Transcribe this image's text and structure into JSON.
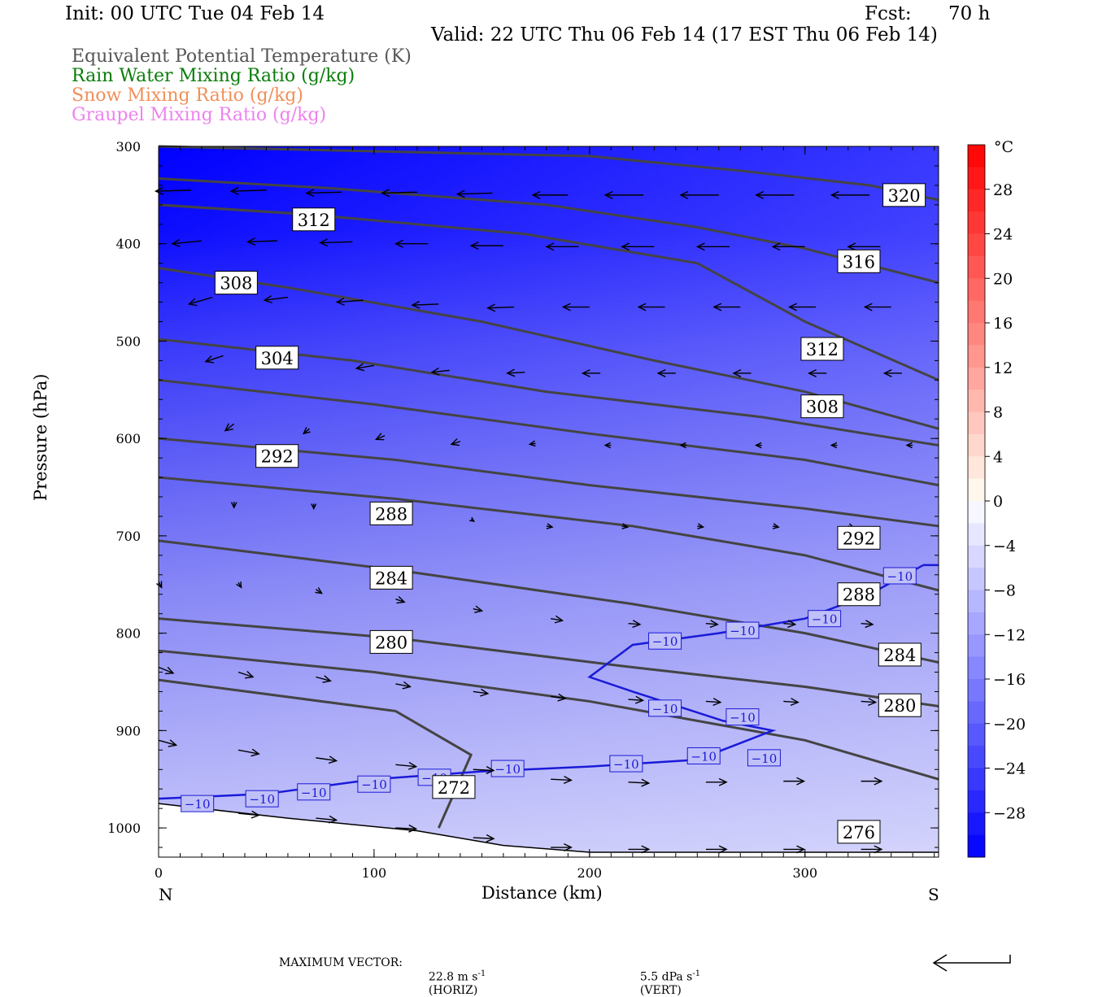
{
  "header": {
    "init": "Init: 00 UTC Tue 04 Feb 14",
    "fcst_label": "Fcst:",
    "fcst_value": "70 h",
    "valid": "Valid: 22 UTC Thu 06 Feb 14 (17 EST Thu 06 Feb 14)"
  },
  "legend": [
    {
      "text": "Equivalent Potential Temperature (K)",
      "color": "#555555"
    },
    {
      "text": "Rain Water Mixing Ratio (g/kg)",
      "color": "#0a7d0a"
    },
    {
      "text": "Snow Mixing Ratio (g/kg)",
      "color": "#f0905a"
    },
    {
      "text": "Graupel Mixing Ratio (g/kg)",
      "color": "#ee82ee"
    }
  ],
  "footer": {
    "max_vector_label": "MAXIMUM VECTOR:",
    "horiz": "22.8 m s",
    "horiz_unit": "(HORIZ)",
    "vert": "5.5 dPa s",
    "vert_unit": "(VERT)",
    "exponent": "-1"
  },
  "chart_data": {
    "type": "cross-section",
    "xlabel": "Distance (km)",
    "ylabel": "Pressure (hPa)",
    "x_ticks": [
      0,
      100,
      200,
      300
    ],
    "y_ticks": [
      300,
      400,
      500,
      600,
      700,
      800,
      900,
      1000
    ],
    "xlim": [
      0,
      362
    ],
    "ylim": [
      300,
      1030
    ],
    "y_reversed": true,
    "end_labels": {
      "left": "N",
      "right": "S"
    },
    "grid": false,
    "colorbar": {
      "unit": "°C",
      "tick_labels": [
        "28",
        "24",
        "20",
        "16",
        "12",
        "8",
        "4",
        "0",
        "−4",
        "−8",
        "−12",
        "−16",
        "−20",
        "−24",
        "−28"
      ],
      "tick_values": [
        28,
        24,
        20,
        16,
        12,
        8,
        4,
        0,
        -4,
        -8,
        -12,
        -16,
        -20,
        -24,
        -28
      ],
      "range": [
        -32,
        32
      ],
      "placement": "right"
    },
    "theta_e_contours": [
      {
        "label": "320",
        "points": [
          [
            0,
            300
          ],
          [
            100,
            305
          ],
          [
            200,
            310
          ],
          [
            270,
            325
          ],
          [
            330,
            340
          ],
          [
            362,
            355
          ]
        ],
        "label_at": [
          346,
          350
        ]
      },
      {
        "label": "316",
        "points": [
          [
            0,
            333
          ],
          [
            80,
            343
          ],
          [
            180,
            360
          ],
          [
            250,
            383
          ],
          [
            300,
            405
          ],
          [
            362,
            440
          ]
        ],
        "label_at": [
          325,
          418
        ]
      },
      {
        "label": "312",
        "points": [
          [
            0,
            360
          ],
          [
            70,
            370
          ],
          [
            170,
            390
          ],
          [
            250,
            420
          ],
          [
            300,
            480
          ],
          [
            362,
            540
          ]
        ],
        "label_at": [
          308,
          508
        ]
      },
      {
        "label": "312",
        "points": [
          [
            0,
            360
          ],
          [
            70,
            370
          ]
        ],
        "label_at": [
          72,
          375
        ]
      },
      {
        "label": "308",
        "points": [
          [
            0,
            425
          ],
          [
            60,
            445
          ],
          [
            150,
            480
          ],
          [
            230,
            520
          ],
          [
            300,
            552
          ],
          [
            362,
            590
          ]
        ],
        "label_at": [
          308,
          567
        ]
      },
      {
        "label": "308",
        "points": [
          [
            0,
            425
          ]
        ],
        "label_at": [
          36,
          440
        ]
      },
      {
        "label": "304",
        "points": [
          [
            0,
            498
          ],
          [
            90,
            520
          ],
          [
            180,
            552
          ],
          [
            280,
            578
          ],
          [
            362,
            607
          ]
        ],
        "label_at": [
          55,
          517
        ]
      },
      {
        "label": "292",
        "points": [
          [
            0,
            540
          ],
          [
            100,
            565
          ],
          [
            200,
            595
          ],
          [
            300,
            622
          ],
          [
            362,
            648
          ]
        ],
        "label_at": [
          55,
          618
        ]
      },
      {
        "label": "292",
        "points": [
          [
            0,
            600
          ],
          [
            110,
            622
          ],
          [
            200,
            648
          ],
          [
            300,
            672
          ],
          [
            362,
            690
          ]
        ],
        "label_at": [
          325,
          702
        ]
      },
      {
        "label": "288",
        "points": [
          [
            0,
            640
          ],
          [
            110,
            662
          ],
          [
            220,
            690
          ],
          [
            300,
            720
          ],
          [
            362,
            756
          ]
        ],
        "label_at": [
          108,
          677
        ]
      },
      {
        "label": "288",
        "points": [
          [
            0,
            640
          ]
        ],
        "label_at": [
          325,
          760
        ]
      },
      {
        "label": "284",
        "points": [
          [
            0,
            705
          ],
          [
            110,
            735
          ],
          [
            220,
            770
          ],
          [
            300,
            800
          ],
          [
            362,
            830
          ]
        ],
        "label_at": [
          108,
          743
        ]
      },
      {
        "label": "284",
        "points": [
          [
            0,
            705
          ]
        ],
        "label_at": [
          344,
          822
        ]
      },
      {
        "label": "280",
        "points": [
          [
            0,
            785
          ],
          [
            110,
            805
          ],
          [
            220,
            835
          ],
          [
            300,
            855
          ],
          [
            362,
            875
          ]
        ],
        "label_at": [
          108,
          809
        ]
      },
      {
        "label": "280",
        "points": [
          [
            0,
            785
          ]
        ],
        "label_at": [
          344,
          874
        ]
      },
      {
        "label": "276",
        "points": [
          [
            0,
            818
          ],
          [
            100,
            840
          ],
          [
            200,
            870
          ],
          [
            300,
            910
          ],
          [
            362,
            950
          ]
        ],
        "label_at": [
          325,
          1004
        ]
      },
      {
        "label": "272",
        "points": [
          [
            0,
            848
          ],
          [
            110,
            880
          ],
          [
            145,
            925
          ],
          [
            130,
            1000
          ]
        ],
        "label_at": [
          137,
          958
        ]
      }
    ],
    "isotherm_minus10": {
      "label": "−10",
      "points": [
        [
          0,
          970
        ],
        [
          50,
          965
        ],
        [
          100,
          950
        ],
        [
          150,
          942
        ],
        [
          200,
          937
        ],
        [
          250,
          930
        ],
        [
          285,
          900
        ],
        [
          262,
          890
        ],
        [
          220,
          860
        ],
        [
          200,
          845
        ],
        [
          220,
          812
        ],
        [
          260,
          800
        ],
        [
          300,
          785
        ],
        [
          330,
          760
        ],
        [
          355,
          730
        ],
        [
          362,
          730
        ]
      ],
      "labels_at": [
        [
          18,
          975
        ],
        [
          48,
          970
        ],
        [
          72,
          963
        ],
        [
          100,
          955
        ],
        [
          128,
          948
        ],
        [
          162,
          939
        ],
        [
          217,
          934
        ],
        [
          253,
          926
        ],
        [
          281,
          928
        ],
        [
          235,
          808
        ],
        [
          271,
          797
        ],
        [
          309,
          785
        ],
        [
          344,
          741
        ],
        [
          235,
          877
        ],
        [
          271,
          886
        ]
      ]
    },
    "wind_vectors": [
      {
        "x": 15,
        "p": 345,
        "dx": -12,
        "dp": 1
      },
      {
        "x": 50,
        "p": 345,
        "dx": -12,
        "dp": 1
      },
      {
        "x": 85,
        "p": 347,
        "dx": -12,
        "dp": 1
      },
      {
        "x": 120,
        "p": 347,
        "dx": -12,
        "dp": 1
      },
      {
        "x": 155,
        "p": 348,
        "dx": -12,
        "dp": 1
      },
      {
        "x": 190,
        "p": 350,
        "dx": -12,
        "dp": 0
      },
      {
        "x": 225,
        "p": 350,
        "dx": -13,
        "dp": 0
      },
      {
        "x": 260,
        "p": 350,
        "dx": -13,
        "dp": 0
      },
      {
        "x": 295,
        "p": 350,
        "dx": -13,
        "dp": 0
      },
      {
        "x": 330,
        "p": 350,
        "dx": -13,
        "dp": 0
      },
      {
        "x": 20,
        "p": 397,
        "dx": -10,
        "dp": 3
      },
      {
        "x": 55,
        "p": 397,
        "dx": -10,
        "dp": 1
      },
      {
        "x": 90,
        "p": 398,
        "dx": -11,
        "dp": 1
      },
      {
        "x": 125,
        "p": 400,
        "dx": -11,
        "dp": 0
      },
      {
        "x": 160,
        "p": 402,
        "dx": -11,
        "dp": 0
      },
      {
        "x": 195,
        "p": 403,
        "dx": -11,
        "dp": 0
      },
      {
        "x": 230,
        "p": 403,
        "dx": -11,
        "dp": 0
      },
      {
        "x": 265,
        "p": 403,
        "dx": -11,
        "dp": 0
      },
      {
        "x": 300,
        "p": 403,
        "dx": -11,
        "dp": 0
      },
      {
        "x": 335,
        "p": 403,
        "dx": -11,
        "dp": 0
      },
      {
        "x": 25,
        "p": 455,
        "dx": -8,
        "dp": 7
      },
      {
        "x": 60,
        "p": 455,
        "dx": -8,
        "dp": 3
      },
      {
        "x": 95,
        "p": 458,
        "dx": -9,
        "dp": 2
      },
      {
        "x": 130,
        "p": 462,
        "dx": -9,
        "dp": 1
      },
      {
        "x": 165,
        "p": 465,
        "dx": -9,
        "dp": 1
      },
      {
        "x": 200,
        "p": 465,
        "dx": -9,
        "dp": 0
      },
      {
        "x": 235,
        "p": 465,
        "dx": -9,
        "dp": 0
      },
      {
        "x": 270,
        "p": 465,
        "dx": -9,
        "dp": 0
      },
      {
        "x": 305,
        "p": 465,
        "dx": -9,
        "dp": 0
      },
      {
        "x": 340,
        "p": 465,
        "dx": -9,
        "dp": 0
      },
      {
        "x": 30,
        "p": 515,
        "dx": -6,
        "dp": 6
      },
      {
        "x": 65,
        "p": 515,
        "dx": -5,
        "dp": 4
      },
      {
        "x": 100,
        "p": 525,
        "dx": -6,
        "dp": 3
      },
      {
        "x": 135,
        "p": 530,
        "dx": -6,
        "dp": 2
      },
      {
        "x": 170,
        "p": 532,
        "dx": -6,
        "dp": 1
      },
      {
        "x": 205,
        "p": 533,
        "dx": -6,
        "dp": 0
      },
      {
        "x": 240,
        "p": 533,
        "dx": -6,
        "dp": 0
      },
      {
        "x": 275,
        "p": 533,
        "dx": -6,
        "dp": 0
      },
      {
        "x": 310,
        "p": 533,
        "dx": -6,
        "dp": 0
      },
      {
        "x": 345,
        "p": 533,
        "dx": -6,
        "dp": 0
      },
      {
        "x": 35,
        "p": 585,
        "dx": -3,
        "dp": 7
      },
      {
        "x": 70,
        "p": 590,
        "dx": -2,
        "dp": 5
      },
      {
        "x": 105,
        "p": 597,
        "dx": -3,
        "dp": 4
      },
      {
        "x": 140,
        "p": 603,
        "dx": -3,
        "dp": 3
      },
      {
        "x": 175,
        "p": 605,
        "dx": -2,
        "dp": 1
      },
      {
        "x": 210,
        "p": 607,
        "dx": -2,
        "dp": 0
      },
      {
        "x": 245,
        "p": 607,
        "dx": -2,
        "dp": 0
      },
      {
        "x": 280,
        "p": 607,
        "dx": -2,
        "dp": 0
      },
      {
        "x": 315,
        "p": 607,
        "dx": -2,
        "dp": 0
      },
      {
        "x": 350,
        "p": 607,
        "dx": -2,
        "dp": 0
      },
      {
        "x": 35,
        "p": 665,
        "dx": 0,
        "dp": 6
      },
      {
        "x": 72,
        "p": 667,
        "dx": 0,
        "dp": 5
      },
      {
        "x": 108,
        "p": 678,
        "dx": 1,
        "dp": 3
      },
      {
        "x": 145,
        "p": 683,
        "dx": 1,
        "dp": 2
      },
      {
        "x": 180,
        "p": 690,
        "dx": 2,
        "dp": 1
      },
      {
        "x": 215,
        "p": 690,
        "dx": 2,
        "dp": 1
      },
      {
        "x": 250,
        "p": 690,
        "dx": 2,
        "dp": 1
      },
      {
        "x": 285,
        "p": 690,
        "dx": 2,
        "dp": 1
      },
      {
        "x": 320,
        "p": 690,
        "dx": 2,
        "dp": 2
      },
      {
        "x": 0,
        "p": 747,
        "dx": 1,
        "dp": 6
      },
      {
        "x": 37,
        "p": 748,
        "dx": 1,
        "dp": 5
      },
      {
        "x": 73,
        "p": 755,
        "dx": 2,
        "dp": 4
      },
      {
        "x": 110,
        "p": 765,
        "dx": 3,
        "dp": 3
      },
      {
        "x": 146,
        "p": 775,
        "dx": 3,
        "dp": 2
      },
      {
        "x": 182,
        "p": 785,
        "dx": 4,
        "dp": 2
      },
      {
        "x": 218,
        "p": 790,
        "dx": 4,
        "dp": 1
      },
      {
        "x": 254,
        "p": 790,
        "dx": 4,
        "dp": 1
      },
      {
        "x": 290,
        "p": 790,
        "dx": 4,
        "dp": 1
      },
      {
        "x": 326,
        "p": 790,
        "dx": 4,
        "dp": 1
      },
      {
        "x": 0,
        "p": 835,
        "dx": 5,
        "dp": 6
      },
      {
        "x": 37,
        "p": 840,
        "dx": 5,
        "dp": 5
      },
      {
        "x": 73,
        "p": 845,
        "dx": 5,
        "dp": 4
      },
      {
        "x": 110,
        "p": 852,
        "dx": 5,
        "dp": 3
      },
      {
        "x": 146,
        "p": 860,
        "dx": 5,
        "dp": 2
      },
      {
        "x": 182,
        "p": 865,
        "dx": 5,
        "dp": 2
      },
      {
        "x": 218,
        "p": 868,
        "dx": 5,
        "dp": 1
      },
      {
        "x": 254,
        "p": 870,
        "dx": 5,
        "dp": 1
      },
      {
        "x": 290,
        "p": 870,
        "dx": 5,
        "dp": 1
      },
      {
        "x": 326,
        "p": 870,
        "dx": 5,
        "dp": 1
      },
      {
        "x": 0,
        "p": 910,
        "dx": 6,
        "dp": 5
      },
      {
        "x": 37,
        "p": 920,
        "dx": 7,
        "dp": 4
      },
      {
        "x": 73,
        "p": 928,
        "dx": 7,
        "dp": 3
      },
      {
        "x": 110,
        "p": 935,
        "dx": 7,
        "dp": 2
      },
      {
        "x": 146,
        "p": 940,
        "dx": 7,
        "dp": 1
      },
      {
        "x": 182,
        "p": 950,
        "dx": 7,
        "dp": 1
      },
      {
        "x": 218,
        "p": 953,
        "dx": 7,
        "dp": 1
      },
      {
        "x": 254,
        "p": 953,
        "dx": 7,
        "dp": 0
      },
      {
        "x": 290,
        "p": 952,
        "dx": 7,
        "dp": 0
      },
      {
        "x": 326,
        "p": 952,
        "dx": 7,
        "dp": 0
      },
      {
        "x": 37,
        "p": 985,
        "dx": 7,
        "dp": 2
      },
      {
        "x": 73,
        "p": 990,
        "dx": 7,
        "dp": 2
      },
      {
        "x": 110,
        "p": 1000,
        "dx": 7,
        "dp": 1
      },
      {
        "x": 146,
        "p": 1010,
        "dx": 7,
        "dp": 1
      },
      {
        "x": 182,
        "p": 1020,
        "dx": 7,
        "dp": 0
      },
      {
        "x": 218,
        "p": 1022,
        "dx": 7,
        "dp": 0
      },
      {
        "x": 254,
        "p": 1022,
        "dx": 7,
        "dp": 0
      },
      {
        "x": 290,
        "p": 1022,
        "dx": 7,
        "dp": 0
      },
      {
        "x": 326,
        "p": 1022,
        "dx": 7,
        "dp": 0
      }
    ],
    "terrain": [
      [
        0,
        975
      ],
      [
        60,
        990
      ],
      [
        120,
        1003
      ],
      [
        160,
        1018
      ],
      [
        200,
        1025
      ],
      [
        362,
        1025
      ]
    ]
  }
}
